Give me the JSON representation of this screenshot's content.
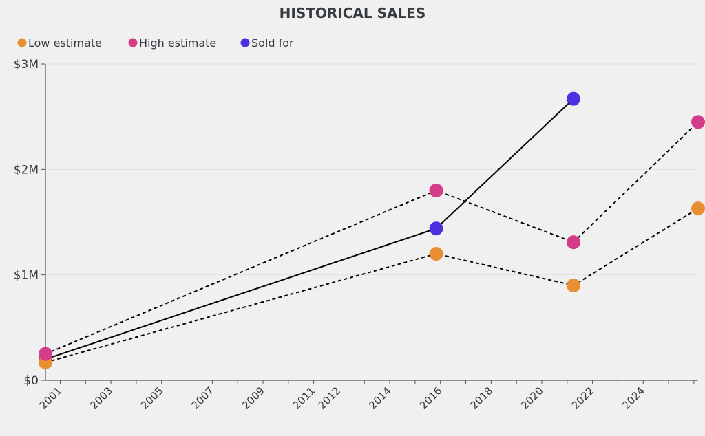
{
  "chart_data": {
    "type": "line",
    "title": "HISTORICAL SALES",
    "xlabel": "",
    "ylabel": "",
    "x_tick_labels": [
      "2001",
      "2003",
      "2005",
      "2007",
      "2009",
      "2011",
      "2012",
      "2014",
      "2016",
      "2018",
      "2020",
      "2022",
      "2024"
    ],
    "y_tick_labels": [
      "$0",
      "$1M",
      "$2M",
      "$3M"
    ],
    "y_ticks": [
      0,
      1000000,
      2000000,
      3000000
    ],
    "ylim": [
      0,
      3000000
    ],
    "xlim": [
      "2000-06",
      "2026-03"
    ],
    "grid": "horizontal",
    "legend_position": "top-left",
    "x": [
      "2000-06",
      "2015-11",
      "2021-04",
      "2026-03"
    ],
    "series": [
      {
        "name": "Low estimate",
        "color": "#e88f33",
        "line": "dashed",
        "values": [
          170000,
          1200000,
          900000,
          1630000
        ]
      },
      {
        "name": "High estimate",
        "color": "#d43c8a",
        "line": "dashed",
        "values": [
          250000,
          1800000,
          1310000,
          2450000
        ]
      },
      {
        "name": "Sold for",
        "color": "#4a30e0",
        "line": "solid",
        "values": [
          200000,
          1440000,
          2670000,
          null
        ]
      }
    ]
  }
}
